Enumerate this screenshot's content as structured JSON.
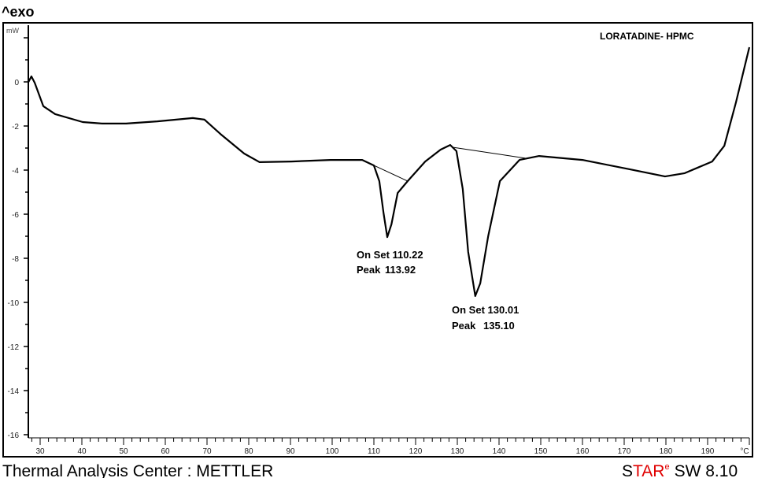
{
  "chart_data": {
    "type": "line",
    "title": "LORATADINE- HPMC",
    "exo_label": "^exo",
    "ylabel": "mW",
    "xunit": "°C",
    "xlim": [
      27.2,
      200
    ],
    "ylim": [
      -16.7,
      2.6
    ],
    "xticks": [
      30,
      40,
      50,
      60,
      70,
      80,
      90,
      100,
      110,
      120,
      130,
      140,
      150,
      160,
      170,
      180,
      190
    ],
    "yticks": [
      0,
      -2,
      -4,
      -6,
      -8,
      -10,
      -12,
      -14,
      -16
    ],
    "grid": false,
    "series": [
      {
        "x": [
          27.2,
          27.9,
          28.7,
          30.75,
          33.6,
          40.2,
          44.9,
          50.6,
          58.1,
          66.6,
          69.4,
          73.2,
          78.9,
          82.6,
          90.2,
          99.6,
          107.2,
          110.0,
          111.3,
          112.3,
          113.2,
          114.2,
          115.7,
          118.1,
          122.3,
          126.0,
          128.3,
          129.8,
          131.3,
          132.6,
          134.3,
          135.5,
          137.4,
          140.2,
          144.9,
          149.6,
          160.0,
          171.3,
          179.8,
          184.5,
          191.1,
          194.0,
          196.8,
          200.0
        ],
        "y": [
          0,
          0.25,
          -0.04,
          -1.1,
          -1.46,
          -1.82,
          -1.89,
          -1.89,
          -1.79,
          -1.64,
          -1.71,
          -2.36,
          -3.25,
          -3.64,
          -3.61,
          -3.54,
          -3.54,
          -3.79,
          -4.5,
          -5.93,
          -7.04,
          -6.46,
          -5.04,
          -4.5,
          -3.61,
          -3.07,
          -2.86,
          -3.14,
          -4.86,
          -7.71,
          -9.71,
          -9.14,
          -7.0,
          -4.5,
          -3.54,
          -3.36,
          -3.54,
          -3.96,
          -4.29,
          -4.14,
          -3.61,
          -2.9,
          -0.93,
          1.57
        ]
      }
    ],
    "baselines": [
      {
        "x": [
          108.8,
          118.1
        ],
        "y": [
          -3.68,
          -4.5
        ]
      },
      {
        "x": [
          128.7,
          146.3
        ],
        "y": [
          -2.96,
          -3.46
        ]
      }
    ],
    "annotations": [
      {
        "onset_label": "On Set",
        "onset": "110.22",
        "peak_label": "Peak",
        "peak": "113.92"
      },
      {
        "onset_label": "On Set",
        "onset": "130.01",
        "peak_label": "Peak",
        "peak": "135.10"
      }
    ]
  },
  "footer": {
    "left": "Thermal Analysis Center : METTLER",
    "brand_s": "S",
    "brand_tar": "TAR",
    "brand_e": "e",
    "brand_sw": "SW 8.10",
    "brand_color": "#e00000"
  }
}
